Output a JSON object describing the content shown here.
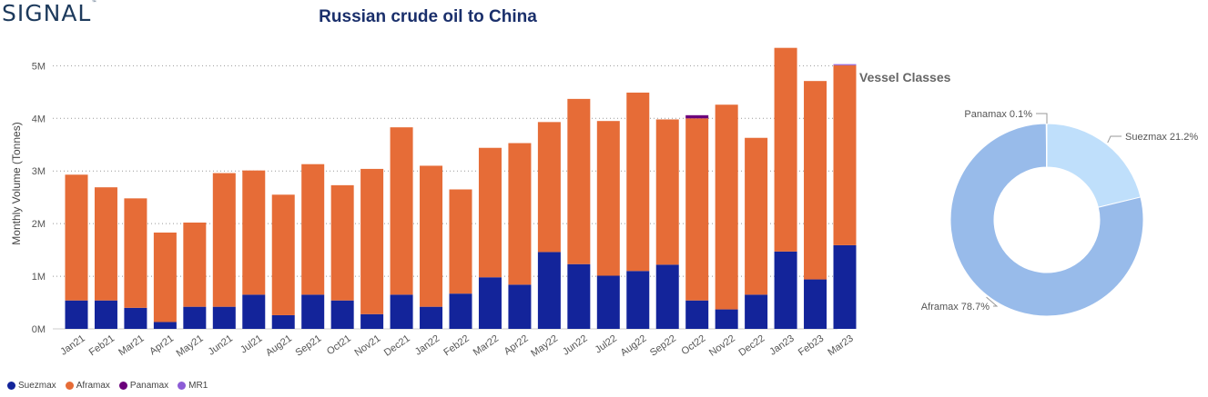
{
  "logo": "SIGNAL",
  "logo_mark": "™",
  "title": "Russian crude oil to China",
  "donut_title": "Vessel Classes",
  "colors": {
    "Suezmax": "#13249a",
    "Aframax": "#e66c37",
    "Panamax": "#6b007b",
    "MR1": "#8c5cd6",
    "donut_suezmax": "#bfdffb",
    "donut_aframax": "#98bbea",
    "donut_panamax": "#6b007b"
  },
  "chart_data": [
    {
      "type": "bar",
      "stacked": true,
      "title": "Russian crude oil to China",
      "ylabel": "Monthly Volume (Tonnes)",
      "ylim": [
        0,
        5300000
      ],
      "yticks": [
        0,
        1000000,
        2000000,
        3000000,
        4000000,
        5000000
      ],
      "ytick_labels": [
        "0M",
        "1M",
        "2M",
        "3M",
        "4M",
        "5M"
      ],
      "grid": true,
      "legend_position": "bottom-left",
      "categories": [
        "Jan21",
        "Feb21",
        "Mar21",
        "Apr21",
        "May21",
        "Jun21",
        "Jul21",
        "Aug21",
        "Sep21",
        "Oct21",
        "Nov21",
        "Dec21",
        "Jan22",
        "Feb22",
        "Mar22",
        "Apr22",
        "May22",
        "Jun22",
        "Jul22",
        "Aug22",
        "Sep22",
        "Oct22",
        "Nov22",
        "Dec22",
        "Jan23",
        "Feb23",
        "Mar23"
      ],
      "series": [
        {
          "name": "Suezmax",
          "values": [
            540000,
            540000,
            400000,
            130000,
            420000,
            420000,
            650000,
            260000,
            650000,
            540000,
            280000,
            650000,
            420000,
            670000,
            980000,
            840000,
            1460000,
            1230000,
            1010000,
            1100000,
            1220000,
            540000,
            370000,
            650000,
            1470000,
            940000,
            1590000
          ]
        },
        {
          "name": "Aframax",
          "values": [
            2390000,
            2150000,
            2080000,
            1700000,
            1600000,
            2540000,
            2360000,
            2290000,
            2480000,
            2190000,
            2760000,
            3180000,
            2680000,
            1980000,
            2460000,
            2690000,
            2470000,
            3140000,
            2940000,
            3390000,
            2760000,
            3460000,
            3890000,
            2980000,
            3870000,
            3770000,
            3420000
          ]
        },
        {
          "name": "Panamax",
          "values": [
            0,
            0,
            0,
            0,
            0,
            0,
            0,
            0,
            0,
            0,
            0,
            0,
            0,
            0,
            0,
            0,
            0,
            0,
            0,
            0,
            0,
            60000,
            0,
            0,
            0,
            0,
            0
          ]
        },
        {
          "name": "MR1",
          "values": [
            0,
            0,
            0,
            0,
            0,
            0,
            0,
            0,
            0,
            0,
            0,
            0,
            0,
            0,
            0,
            0,
            0,
            0,
            0,
            0,
            0,
            0,
            0,
            0,
            0,
            0,
            20000
          ]
        }
      ]
    },
    {
      "type": "pie",
      "donut": true,
      "title": "Vessel Classes",
      "slices": [
        {
          "name": "Suezmax",
          "value": 21.2,
          "label": "Suezmax 21.2%"
        },
        {
          "name": "Aframax",
          "value": 78.7,
          "label": "Aframax 78.7%"
        },
        {
          "name": "Panamax",
          "value": 0.1,
          "label": "Panamax 0.1%"
        }
      ]
    }
  ]
}
